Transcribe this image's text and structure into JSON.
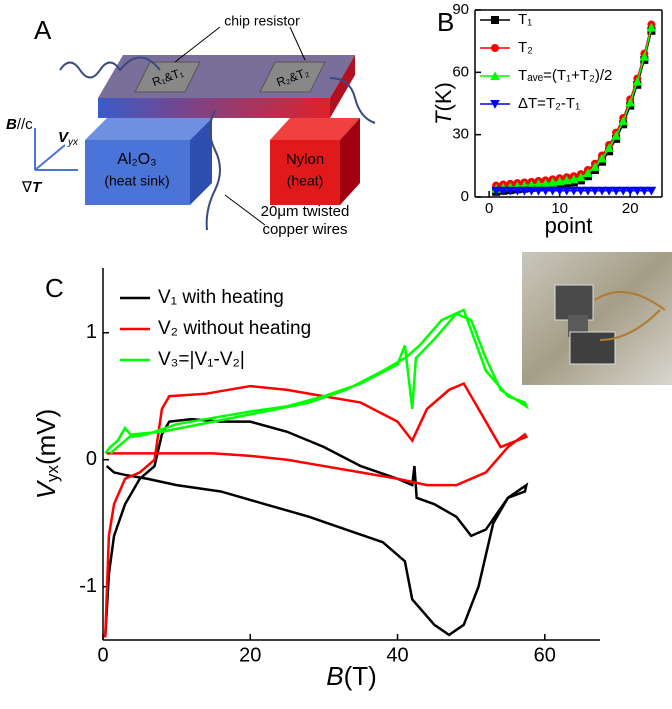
{
  "panels": [
    "A",
    "B",
    "C"
  ],
  "diagram": {
    "chip_resistor": "chip resistor",
    "r1": "R₁&T₁",
    "r2": "R₂&T₂",
    "sink_name": "Al₂O₃",
    "sink_role": "(heat sink)",
    "heat_name": "Nylon",
    "heat_role": "(heat)",
    "wires_1": "20μm twisted",
    "wires_2": "copper wires",
    "field": [
      "B",
      "//c"
    ],
    "voltage": [
      "V",
      "yx"
    ],
    "gradient": [
      "∇",
      "T"
    ]
  },
  "chart_data": [
    {
      "type": "line",
      "xlabel": "point",
      "ylabel": [
        "T",
        "(K)"
      ],
      "x": [
        1,
        2,
        3,
        4,
        5,
        6,
        7,
        8,
        9,
        10,
        11,
        12,
        13,
        14,
        15,
        16,
        17,
        18,
        19,
        20,
        21,
        22,
        23
      ],
      "series": [
        {
          "name": "T₁",
          "color": "#000000",
          "marker": "square",
          "values": [
            2.5,
            3,
            3.3,
            3.7,
            4,
            4.3,
            4.7,
            5,
            5.5,
            6,
            6.5,
            7,
            8,
            10,
            13,
            17,
            22,
            28,
            35,
            44,
            54,
            66,
            80
          ]
        },
        {
          "name": "T₂",
          "color": "#ff0000",
          "marker": "circle",
          "values": [
            5.5,
            6,
            6.3,
            6.7,
            7,
            7.3,
            7.7,
            8,
            8.5,
            9,
            9.5,
            10,
            11,
            13,
            16,
            20,
            25,
            31,
            38,
            47,
            57,
            69,
            83
          ]
        },
        {
          "name": "Tₐᵥₑ=(T₁+T₂)/2",
          "color": "#00ff00",
          "marker": "triangle-up",
          "values": [
            4,
            4.5,
            4.8,
            5.2,
            5.5,
            5.8,
            6.2,
            6.5,
            7,
            7.5,
            8,
            8.5,
            9.5,
            11.5,
            14.5,
            18.5,
            23.5,
            29.5,
            36.5,
            45.5,
            55.5,
            67.5,
            81.5
          ]
        },
        {
          "name": "ΔT=T₂-T₁",
          "color": "#0000ff",
          "marker": "triangle-down",
          "values": [
            3,
            3,
            3,
            3,
            3,
            3,
            3,
            3,
            3,
            3,
            3,
            3,
            3,
            3,
            3,
            3,
            3,
            3,
            3,
            3,
            3,
            3,
            3
          ]
        }
      ],
      "xlim": [
        -2,
        24.5
      ],
      "xticks": [
        0,
        10,
        20
      ],
      "ylim": [
        0,
        90
      ],
      "yticks": [
        0,
        30,
        60,
        90
      ]
    },
    {
      "type": "line",
      "xlabel": [
        "B",
        "(T)"
      ],
      "ylabel": [
        "V",
        "yx",
        "(mV)"
      ],
      "series": [
        {
          "name": "V₁ with heating",
          "color": "#000000",
          "x": [
            0.3,
            0.8,
            1.5,
            3,
            5,
            7,
            8,
            9,
            12,
            16,
            20,
            25,
            30,
            35,
            40,
            42,
            42.3,
            42.6,
            45,
            48,
            50,
            52,
            55,
            57.5,
            57.3,
            55,
            53,
            51,
            49,
            47,
            45,
            42,
            41,
            38,
            33,
            28,
            22,
            16,
            10,
            6,
            3,
            1.5,
            0.5
          ],
          "values": [
            -1.4,
            -0.9,
            -0.6,
            -0.35,
            -0.15,
            -0.05,
            0.2,
            0.3,
            0.32,
            0.3,
            0.3,
            0.22,
            0.1,
            -0.05,
            -0.15,
            -0.2,
            -0.05,
            -0.3,
            -0.35,
            -0.45,
            -0.6,
            -0.55,
            -0.3,
            -0.2,
            -0.25,
            -0.3,
            -0.5,
            -1.0,
            -1.3,
            -1.38,
            -1.3,
            -1.1,
            -0.8,
            -0.65,
            -0.55,
            -0.45,
            -0.35,
            -0.25,
            -0.2,
            -0.15,
            -0.12,
            -0.1,
            -0.05
          ]
        },
        {
          "name": "V₂ without heating",
          "color": "#ff0000",
          "x": [
            0.3,
            0.8,
            1.5,
            3,
            5,
            7,
            8,
            9,
            14,
            20,
            25,
            30,
            35,
            40,
            42,
            44,
            47,
            49,
            51,
            54,
            57.5,
            57.3,
            55,
            52,
            48,
            44,
            40,
            35,
            30,
            25,
            20,
            15,
            10,
            5,
            2,
            0.5
          ],
          "values": [
            -1.4,
            -0.6,
            -0.35,
            -0.15,
            -0.1,
            0,
            0.4,
            0.5,
            0.52,
            0.58,
            0.55,
            0.5,
            0.45,
            0.3,
            0.15,
            0.4,
            0.55,
            0.6,
            0.4,
            0.1,
            0.18,
            0.2,
            0.1,
            -0.1,
            -0.2,
            -0.2,
            -0.15,
            -0.1,
            -0.05,
            0,
            0.03,
            0.05,
            0.05,
            0.05,
            0.05,
            0.05
          ]
        },
        {
          "name": "V₃=|V₁-V₂|",
          "color": "#00ff00",
          "x": [
            0.3,
            1,
            2,
            3,
            4,
            6,
            10,
            15,
            20,
            25,
            30,
            35,
            40,
            41,
            42,
            42.5,
            45,
            48,
            50,
            52,
            54,
            57.5,
            57.3,
            55,
            52,
            49,
            46,
            43,
            41,
            38,
            33,
            28,
            22,
            15,
            8,
            4,
            1
          ],
          "values": [
            0.05,
            0.1,
            0.15,
            0.25,
            0.18,
            0.2,
            0.28,
            0.33,
            0.38,
            0.42,
            0.5,
            0.6,
            0.75,
            0.9,
            0.4,
            0.8,
            0.95,
            1.15,
            1.1,
            0.8,
            0.55,
            0.42,
            0.45,
            0.5,
            0.7,
            1.18,
            1.1,
            0.9,
            0.8,
            0.7,
            0.55,
            0.45,
            0.38,
            0.3,
            0.22,
            0.2,
            0.05
          ]
        }
      ],
      "xlim": [
        0,
        67.5
      ],
      "xticks": [
        0,
        20,
        40,
        60
      ],
      "ylim": [
        -1.42,
        1.51
      ],
      "yticks": [
        -1,
        0,
        1
      ]
    }
  ]
}
